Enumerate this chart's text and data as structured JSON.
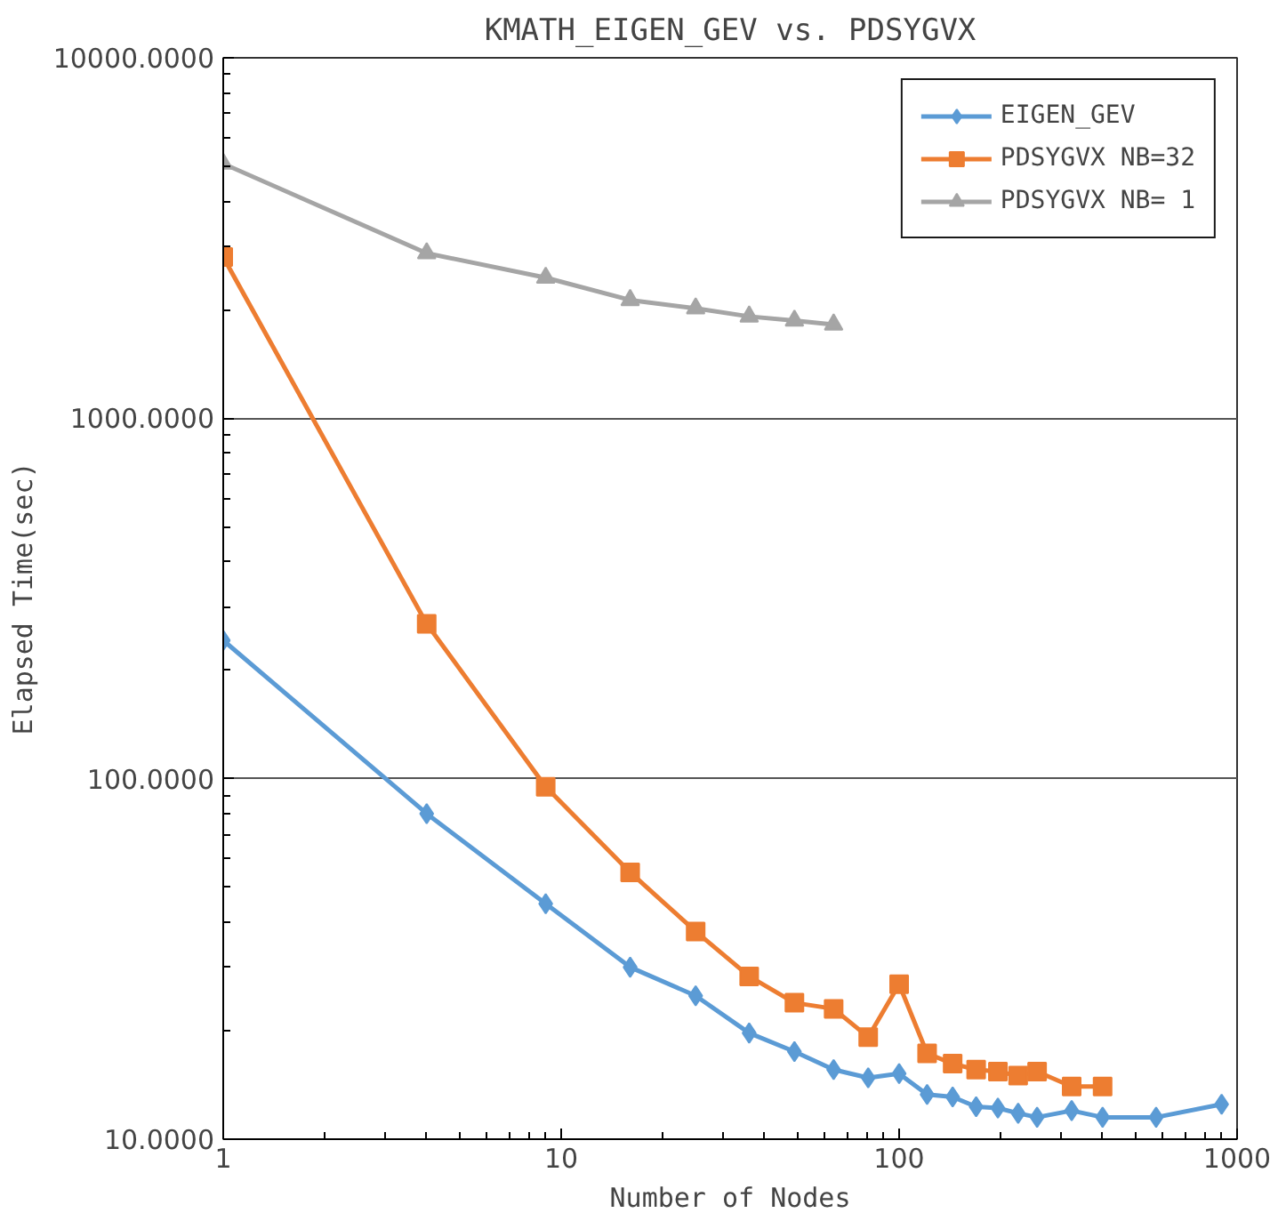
{
  "chart_data": {
    "type": "line",
    "title": "KMATH_EIGEN_GEV vs. PDSYGVX",
    "xlabel": "Number of Nodes",
    "ylabel": "Elapsed Time(sec)",
    "log": "xy",
    "xlim": [
      1,
      1000
    ],
    "xticks": [
      1,
      10,
      100,
      1000
    ],
    "ylim": [
      10,
      10000
    ],
    "yticks": [
      {
        "value": 10,
        "label": "10.0000"
      },
      {
        "value": 100,
        "label": "100.0000"
      },
      {
        "value": 1000,
        "label": "1000.0000"
      },
      {
        "value": 10000,
        "label": "10000.0000"
      }
    ],
    "grid": "y",
    "legend": "top right",
    "series": [
      {
        "name": "EIGEN_GEV",
        "color": "#5b9bd5",
        "marker": "diamond",
        "x": [
          1,
          4,
          9,
          16,
          25,
          36,
          49,
          64,
          81,
          100,
          121,
          144,
          169,
          196,
          225,
          256,
          324,
          400,
          576,
          900
        ],
        "values": [
          242,
          80,
          45,
          30,
          25,
          19.7,
          17.5,
          15.6,
          14.8,
          15.2,
          13.3,
          13.1,
          12.3,
          12.2,
          11.8,
          11.5,
          12.0,
          11.5,
          11.5,
          12.5
        ]
      },
      {
        "name": "PDSYGVX NB=32",
        "color": "#ed7d31",
        "marker": "square",
        "x": [
          1,
          4,
          9,
          16,
          25,
          36,
          49,
          64,
          81,
          100,
          121,
          144,
          169,
          196,
          225,
          256,
          324,
          400
        ],
        "values": [
          2800,
          269,
          95,
          55,
          37.7,
          28.3,
          23.9,
          23,
          19.2,
          26.9,
          17.3,
          16.2,
          15.6,
          15.4,
          15.0,
          15.4,
          14.0,
          14.0
        ]
      },
      {
        "name": "PDSYGVX NB= 1",
        "color": "#a5a5a5",
        "marker": "triangle",
        "x": [
          1,
          4,
          9,
          16,
          25,
          36,
          49,
          64
        ],
        "values": [
          5085,
          2870,
          2455,
          2128,
          2018,
          1916,
          1867,
          1820
        ]
      }
    ]
  }
}
